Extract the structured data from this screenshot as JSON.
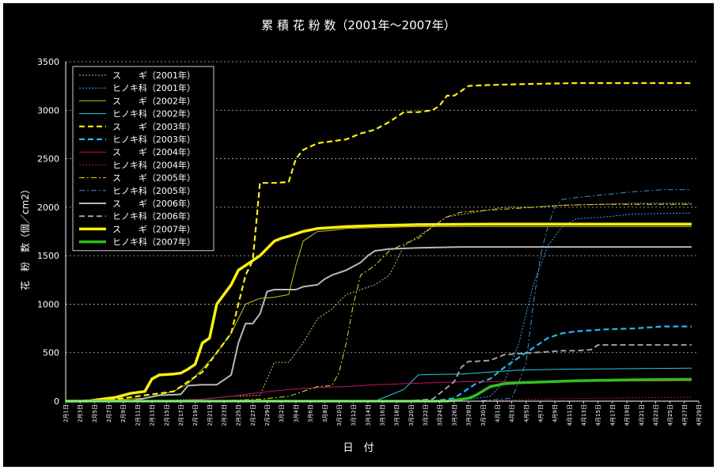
{
  "chart_data": {
    "type": "line",
    "title": "累 積 花 粉 数（2001年〜2007年）",
    "xlabel": "日　付",
    "ylabel": "花　粉　数（個／cm2）",
    "ylim": [
      0,
      3500
    ],
    "yticks": [
      0,
      500,
      1000,
      1500,
      2000,
      2500,
      3000,
      3500
    ],
    "grid": true,
    "legend_position": "top-left",
    "x_day_range": [
      1,
      89
    ],
    "xtick_labels": [
      "2月1日",
      "2月3日",
      "2月5日",
      "2月7日",
      "2月9日",
      "2月11日",
      "2月13日",
      "2月15日",
      "2月17日",
      "2月19日",
      "2月21日",
      "2月23日",
      "2月25日",
      "2月27日",
      "2月29日",
      "3月2日",
      "3月4日",
      "3月6日",
      "3月8日",
      "3月10日",
      "3月12日",
      "3月14日",
      "3月16日",
      "3月18日",
      "3月20日",
      "3月22日",
      "3月24日",
      "3月26日",
      "3月28日",
      "3月30日",
      "4月1日",
      "4月3日",
      "4月5日",
      "4月7日",
      "4月9日",
      "4月11日",
      "4月13日",
      "4月15日",
      "4月17日",
      "4月19日",
      "4月21日",
      "4月23日",
      "4月25日",
      "4月27日",
      "4月29日"
    ],
    "series": [
      {
        "name": "ス　　ギ（2001年）",
        "color": "#d4c070",
        "dash": "dot",
        "width": 1,
        "points": [
          [
            1,
            0
          ],
          [
            15,
            10
          ],
          [
            20,
            20
          ],
          [
            24,
            50
          ],
          [
            28,
            60
          ],
          [
            30,
            400
          ],
          [
            32,
            400
          ],
          [
            34,
            600
          ],
          [
            36,
            850
          ],
          [
            38,
            950
          ],
          [
            40,
            1100
          ],
          [
            42,
            1150
          ],
          [
            44,
            1200
          ],
          [
            46,
            1300
          ],
          [
            48,
            1600
          ],
          [
            50,
            1700
          ],
          [
            52,
            1800
          ],
          [
            54,
            1900
          ],
          [
            58,
            1950
          ],
          [
            62,
            2000
          ],
          [
            66,
            2000
          ],
          [
            70,
            2020
          ],
          [
            80,
            2040
          ],
          [
            88,
            2040
          ]
        ]
      },
      {
        "name": "ヒノキ科（2001年）",
        "color": "#3aaaee",
        "dash": "dot",
        "width": 1,
        "points": [
          [
            1,
            0
          ],
          [
            55,
            0
          ],
          [
            60,
            50
          ],
          [
            62,
            200
          ],
          [
            64,
            600
          ],
          [
            66,
            1200
          ],
          [
            68,
            1600
          ],
          [
            70,
            1800
          ],
          [
            72,
            1880
          ],
          [
            76,
            1900
          ],
          [
            80,
            1930
          ],
          [
            88,
            1940
          ]
        ]
      },
      {
        "name": "ス　　ギ（2002年）",
        "color": "#c8c020",
        "dash": "solid",
        "width": 1,
        "points": [
          [
            1,
            0
          ],
          [
            7,
            10
          ],
          [
            12,
            30
          ],
          [
            16,
            100
          ],
          [
            18,
            180
          ],
          [
            20,
            330
          ],
          [
            22,
            500
          ],
          [
            24,
            700
          ],
          [
            26,
            1000
          ],
          [
            28,
            1060
          ],
          [
            30,
            1070
          ],
          [
            32,
            1100
          ],
          [
            33,
            1400
          ],
          [
            34,
            1650
          ],
          [
            35,
            1700
          ],
          [
            36,
            1750
          ],
          [
            38,
            1760
          ],
          [
            40,
            1780
          ],
          [
            44,
            1790
          ],
          [
            50,
            1800
          ],
          [
            60,
            1800
          ],
          [
            70,
            1800
          ],
          [
            88,
            1800
          ]
        ]
      },
      {
        "name": "ヒノキ科（2002年）",
        "color": "#30c8e0",
        "dash": "solid",
        "width": 1,
        "points": [
          [
            1,
            0
          ],
          [
            44,
            0
          ],
          [
            46,
            60
          ],
          [
            48,
            120
          ],
          [
            50,
            270
          ],
          [
            52,
            275
          ],
          [
            56,
            280
          ],
          [
            60,
            300
          ],
          [
            64,
            320
          ],
          [
            70,
            330
          ],
          [
            80,
            335
          ],
          [
            88,
            340
          ]
        ]
      },
      {
        "name": "ス　　ギ（2003年）",
        "color": "#f8f010",
        "dash": "dash",
        "width": 2.2,
        "points": [
          [
            1,
            0
          ],
          [
            8,
            20
          ],
          [
            12,
            60
          ],
          [
            16,
            100
          ],
          [
            20,
            300
          ],
          [
            22,
            500
          ],
          [
            24,
            700
          ],
          [
            26,
            1300
          ],
          [
            27,
            1450
          ],
          [
            28,
            2250
          ],
          [
            30,
            2250
          ],
          [
            32,
            2260
          ],
          [
            33,
            2500
          ],
          [
            34,
            2590
          ],
          [
            36,
            2660
          ],
          [
            38,
            2680
          ],
          [
            40,
            2700
          ],
          [
            42,
            2760
          ],
          [
            44,
            2800
          ],
          [
            46,
            2880
          ],
          [
            48,
            2980
          ],
          [
            50,
            2980
          ],
          [
            52,
            3000
          ],
          [
            53,
            3050
          ],
          [
            54,
            3150
          ],
          [
            55,
            3150
          ],
          [
            56,
            3200
          ],
          [
            57,
            3250
          ],
          [
            60,
            3260
          ],
          [
            65,
            3270
          ],
          [
            72,
            3280
          ],
          [
            80,
            3280
          ],
          [
            88,
            3280
          ]
        ]
      },
      {
        "name": "ヒノキ科（2003年）",
        "color": "#20b8ee",
        "dash": "dash",
        "width": 2.2,
        "points": [
          [
            1,
            0
          ],
          [
            52,
            0
          ],
          [
            55,
            30
          ],
          [
            58,
            180
          ],
          [
            60,
            230
          ],
          [
            62,
            350
          ],
          [
            64,
            450
          ],
          [
            66,
            550
          ],
          [
            68,
            650
          ],
          [
            70,
            700
          ],
          [
            72,
            720
          ],
          [
            76,
            740
          ],
          [
            80,
            750
          ],
          [
            84,
            770
          ],
          [
            88,
            770
          ]
        ]
      },
      {
        "name": "ス　　ギ（2004年）",
        "color": "#c81060",
        "dash": "solid",
        "width": 1,
        "points": [
          [
            1,
            0
          ],
          [
            15,
            0
          ],
          [
            20,
            20
          ],
          [
            24,
            50
          ],
          [
            28,
            90
          ],
          [
            32,
            120
          ],
          [
            36,
            140
          ],
          [
            40,
            150
          ],
          [
            44,
            170
          ],
          [
            48,
            180
          ],
          [
            52,
            190
          ],
          [
            56,
            200
          ],
          [
            60,
            200
          ],
          [
            70,
            205
          ],
          [
            88,
            210
          ]
        ]
      },
      {
        "name": "ヒノキ科（2004年）",
        "color": "#c01040",
        "dash": "dot",
        "width": 1,
        "points": [
          [
            1,
            0
          ],
          [
            60,
            0
          ],
          [
            62,
            10
          ],
          [
            66,
            20
          ],
          [
            70,
            25
          ],
          [
            76,
            30
          ],
          [
            80,
            35
          ],
          [
            88,
            40
          ]
        ]
      },
      {
        "name": "ス　　ギ（2005年）",
        "color": "#e0e020",
        "dash": "dashdot",
        "width": 1,
        "points": [
          [
            1,
            0
          ],
          [
            20,
            0
          ],
          [
            28,
            20
          ],
          [
            32,
            50
          ],
          [
            36,
            150
          ],
          [
            38,
            160
          ],
          [
            39,
            300
          ],
          [
            40,
            600
          ],
          [
            41,
            1000
          ],
          [
            42,
            1300
          ],
          [
            44,
            1400
          ],
          [
            46,
            1550
          ],
          [
            48,
            1620
          ],
          [
            50,
            1680
          ],
          [
            52,
            1800
          ],
          [
            54,
            1900
          ],
          [
            56,
            1950
          ],
          [
            58,
            1960
          ],
          [
            62,
            1980
          ],
          [
            66,
            2000
          ],
          [
            70,
            2020
          ],
          [
            76,
            2030
          ],
          [
            88,
            2030
          ]
        ]
      },
      {
        "name": "ヒノキ科（2005年）",
        "color": "#3a90d0",
        "dash": "dashdot",
        "width": 1,
        "points": [
          [
            1,
            0
          ],
          [
            58,
            0
          ],
          [
            63,
            30
          ],
          [
            64,
            200
          ],
          [
            65,
            400
          ],
          [
            66,
            1000
          ],
          [
            67,
            1500
          ],
          [
            68,
            1800
          ],
          [
            69,
            2000
          ],
          [
            70,
            2080
          ],
          [
            72,
            2100
          ],
          [
            76,
            2130
          ],
          [
            80,
            2160
          ],
          [
            84,
            2180
          ],
          [
            88,
            2180
          ]
        ]
      },
      {
        "name": "ス　　ギ（2006年）",
        "color": "#b8b8b8",
        "dash": "solid",
        "width": 2,
        "points": [
          [
            1,
            0
          ],
          [
            10,
            0
          ],
          [
            14,
            60
          ],
          [
            17,
            70
          ],
          [
            18,
            160
          ],
          [
            20,
            170
          ],
          [
            22,
            170
          ],
          [
            24,
            270
          ],
          [
            25,
            600
          ],
          [
            26,
            800
          ],
          [
            27,
            800
          ],
          [
            28,
            900
          ],
          [
            29,
            1130
          ],
          [
            30,
            1150
          ],
          [
            33,
            1150
          ],
          [
            34,
            1180
          ],
          [
            36,
            1200
          ],
          [
            37,
            1260
          ],
          [
            38,
            1300
          ],
          [
            40,
            1350
          ],
          [
            42,
            1430
          ],
          [
            43,
            1500
          ],
          [
            44,
            1550
          ],
          [
            46,
            1570
          ],
          [
            50,
            1580
          ],
          [
            56,
            1590
          ],
          [
            62,
            1590
          ],
          [
            88,
            1590
          ]
        ]
      },
      {
        "name": "ヒノキ科（2006年）",
        "color": "#a0a0a0",
        "dash": "dash",
        "width": 2,
        "points": [
          [
            1,
            0
          ],
          [
            48,
            0
          ],
          [
            52,
            20
          ],
          [
            55,
            200
          ],
          [
            56,
            350
          ],
          [
            57,
            410
          ],
          [
            58,
            410
          ],
          [
            60,
            420
          ],
          [
            62,
            480
          ],
          [
            64,
            490
          ],
          [
            66,
            500
          ],
          [
            68,
            510
          ],
          [
            70,
            520
          ],
          [
            72,
            520
          ],
          [
            74,
            530
          ],
          [
            75,
            580
          ],
          [
            80,
            580
          ],
          [
            88,
            580
          ]
        ]
      },
      {
        "name": "ス　　ギ（2007年）",
        "color": "#f8f010",
        "dash": "solid",
        "width": 3.5,
        "points": [
          [
            1,
            0
          ],
          [
            4,
            0
          ],
          [
            6,
            20
          ],
          [
            8,
            40
          ],
          [
            10,
            80
          ],
          [
            12,
            100
          ],
          [
            13,
            230
          ],
          [
            14,
            270
          ],
          [
            16,
            280
          ],
          [
            17,
            290
          ],
          [
            18,
            330
          ],
          [
            19,
            380
          ],
          [
            20,
            600
          ],
          [
            21,
            650
          ],
          [
            22,
            1000
          ],
          [
            24,
            1200
          ],
          [
            25,
            1350
          ],
          [
            26,
            1400
          ],
          [
            28,
            1500
          ],
          [
            30,
            1650
          ],
          [
            31,
            1680
          ],
          [
            32,
            1700
          ],
          [
            34,
            1750
          ],
          [
            36,
            1780
          ],
          [
            38,
            1790
          ],
          [
            40,
            1800
          ],
          [
            44,
            1810
          ],
          [
            50,
            1820
          ],
          [
            60,
            1825
          ],
          [
            70,
            1825
          ],
          [
            88,
            1825
          ]
        ]
      },
      {
        "name": "ヒノキ科（2007年）",
        "color": "#30c020",
        "dash": "solid",
        "width": 3.5,
        "points": [
          [
            1,
            0
          ],
          [
            54,
            0
          ],
          [
            57,
            30
          ],
          [
            58,
            60
          ],
          [
            60,
            150
          ],
          [
            62,
            180
          ],
          [
            64,
            190
          ],
          [
            68,
            200
          ],
          [
            72,
            210
          ],
          [
            76,
            215
          ],
          [
            80,
            220
          ],
          [
            88,
            225
          ]
        ]
      }
    ]
  }
}
